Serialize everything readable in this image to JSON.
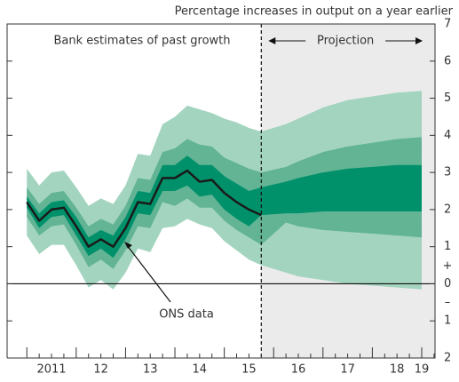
{
  "chart_data": {
    "type": "fan",
    "title": "Percentage increases in output on a year earlier",
    "annotations": {
      "past": "Bank estimates of past growth",
      "projection": "Projection",
      "line_label": "ONS data",
      "plus": "+",
      "minus": "–"
    },
    "xlim": [
      2010.6,
      2019.27
    ],
    "xticks": [
      {
        "value": 2011.5,
        "label": "2011"
      },
      {
        "value": 2012.5,
        "label": "12"
      },
      {
        "value": 2013.5,
        "label": "13"
      },
      {
        "value": 2014.5,
        "label": "14"
      },
      {
        "value": 2015.5,
        "label": "15"
      },
      {
        "value": 2016.5,
        "label": "16"
      },
      {
        "value": 2017.5,
        "label": "17"
      },
      {
        "value": 2018.5,
        "label": "18"
      },
      {
        "value": 2019,
        "label": "19"
      }
    ],
    "ylim": [
      -2,
      7
    ],
    "yticks": [
      {
        "value": -2,
        "label": "2"
      },
      {
        "value": -1,
        "label": "1"
      },
      0,
      1,
      2,
      3,
      4,
      5,
      6,
      7
    ],
    "projection_start": 2015.75,
    "projection_shade": "#ebebeb",
    "band_x": [
      2011,
      2011.25,
      2011.5,
      2011.75,
      2012,
      2012.25,
      2012.5,
      2012.75,
      2013,
      2013.25,
      2013.5,
      2013.75,
      2014,
      2014.25,
      2014.5,
      2014.75,
      2015,
      2015.25,
      2015.5,
      2015.75,
      2016.25,
      2016.5,
      2017,
      2017.5,
      2018,
      2018.5,
      2019
    ],
    "bands": [
      {
        "color": "#a3d4bf",
        "upper": [
          3.1,
          2.65,
          3.0,
          3.05,
          2.6,
          2.1,
          2.3,
          2.15,
          2.65,
          3.5,
          3.45,
          4.3,
          4.5,
          4.8,
          4.7,
          4.6,
          4.45,
          4.35,
          4.2,
          4.1,
          4.3,
          4.45,
          4.75,
          4.95,
          5.05,
          5.15,
          5.2
        ],
        "lower": [
          1.3,
          0.8,
          1.05,
          1.05,
          0.5,
          -0.1,
          0.1,
          -0.15,
          0.3,
          0.95,
          0.85,
          1.5,
          1.55,
          1.75,
          1.6,
          1.5,
          1.15,
          0.9,
          0.65,
          0.5,
          0.3,
          0.2,
          0.1,
          0.0,
          -0.05,
          -0.1,
          -0.15
        ]
      },
      {
        "color": "#62b495",
        "upper": [
          2.6,
          2.15,
          2.45,
          2.5,
          2.05,
          1.55,
          1.75,
          1.6,
          2.1,
          2.85,
          2.8,
          3.55,
          3.65,
          3.9,
          3.75,
          3.7,
          3.4,
          3.25,
          3.1,
          3.0,
          3.15,
          3.3,
          3.55,
          3.7,
          3.8,
          3.9,
          3.95
        ],
        "lower": [
          1.8,
          1.3,
          1.55,
          1.6,
          1.05,
          0.45,
          0.65,
          0.4,
          0.9,
          1.55,
          1.5,
          2.2,
          2.1,
          2.3,
          2.05,
          2.05,
          1.7,
          1.45,
          1.25,
          1.05,
          1.65,
          1.55,
          1.45,
          1.4,
          1.35,
          1.3,
          1.25
        ]
      },
      {
        "color": "#00916a",
        "upper": [
          2.35,
          1.9,
          2.2,
          2.25,
          1.8,
          1.25,
          1.45,
          1.3,
          1.8,
          2.5,
          2.45,
          3.2,
          3.2,
          3.45,
          3.2,
          3.2,
          2.9,
          2.7,
          2.5,
          2.6,
          2.75,
          2.85,
          3.0,
          3.1,
          3.15,
          3.2,
          3.2
        ],
        "lower": [
          2.05,
          1.5,
          1.8,
          1.85,
          1.3,
          0.75,
          0.95,
          0.7,
          1.2,
          1.9,
          1.85,
          2.5,
          2.5,
          2.65,
          2.35,
          2.4,
          2.0,
          1.75,
          1.55,
          1.85,
          1.9,
          1.9,
          1.95,
          1.95,
          1.95,
          1.95,
          1.95
        ]
      }
    ],
    "line": {
      "color": "#1a1a1a",
      "x": [
        2011,
        2011.25,
        2011.5,
        2011.75,
        2012,
        2012.25,
        2012.5,
        2012.75,
        2013,
        2013.25,
        2013.5,
        2013.75,
        2014,
        2014.25,
        2014.5,
        2014.75,
        2015,
        2015.25,
        2015.5,
        2015.75
      ],
      "values": [
        2.2,
        1.7,
        2.0,
        2.05,
        1.55,
        1.0,
        1.2,
        1.0,
        1.5,
        2.2,
        2.15,
        2.85,
        2.85,
        3.05,
        2.75,
        2.8,
        2.45,
        2.2,
        2.0,
        1.85
      ]
    }
  }
}
